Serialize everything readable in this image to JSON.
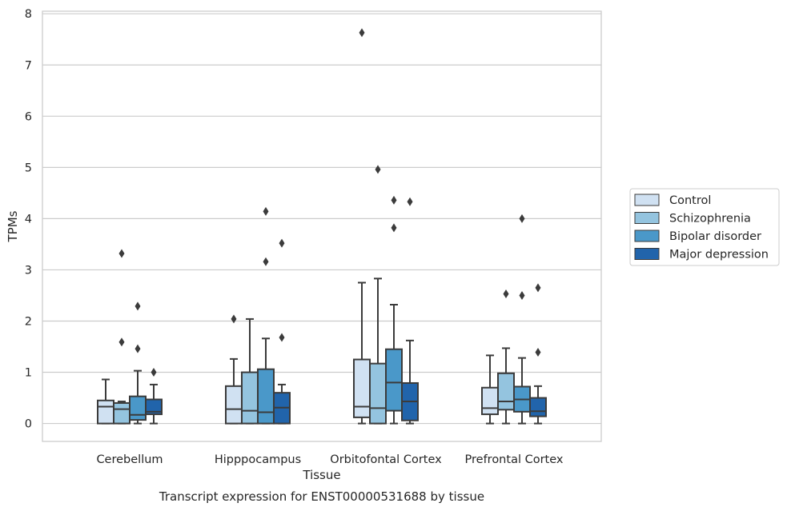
{
  "chart_data": {
    "type": "boxplot",
    "caption": "Transcript expression for ENST00000531688 by tissue",
    "xlabel": "Tissue",
    "ylabel": "TPMs",
    "ylim": [
      -0.35,
      8.05
    ],
    "yticks": [
      0,
      1,
      2,
      3,
      4,
      5,
      6,
      7,
      8
    ],
    "grid": "horizontal",
    "legend_position": "right",
    "categories": [
      "Cerebellum",
      "Hipppocampus",
      "Orbitofontal Cortex",
      "Prefrontal Cortex"
    ],
    "series": [
      {
        "name": "Control",
        "color": "#d0e1f2",
        "boxes": [
          {
            "whislo": 0.0,
            "q1": 0.0,
            "median": 0.33,
            "q3": 0.45,
            "whishi": 0.86,
            "fliers": []
          },
          {
            "whislo": 0.0,
            "q1": 0.0,
            "median": 0.28,
            "q3": 0.73,
            "whishi": 1.26,
            "fliers": [
              2.04
            ]
          },
          {
            "whislo": 0.0,
            "q1": 0.12,
            "median": 0.33,
            "q3": 1.25,
            "whishi": 2.75,
            "fliers": [
              7.63
            ]
          },
          {
            "whislo": 0.0,
            "q1": 0.18,
            "median": 0.3,
            "q3": 0.7,
            "whishi": 1.33,
            "fliers": []
          }
        ]
      },
      {
        "name": "Schizophrenia",
        "color": "#94c4df",
        "boxes": [
          {
            "whislo": 0.0,
            "q1": 0.0,
            "median": 0.28,
            "q3": 0.4,
            "whishi": 0.43,
            "fliers": [
              3.32,
              1.59
            ]
          },
          {
            "whislo": 0.0,
            "q1": 0.0,
            "median": 0.25,
            "q3": 1.0,
            "whishi": 2.04,
            "fliers": []
          },
          {
            "whislo": 0.0,
            "q1": 0.0,
            "median": 0.3,
            "q3": 1.17,
            "whishi": 2.83,
            "fliers": [
              4.96
            ]
          },
          {
            "whislo": 0.0,
            "q1": 0.27,
            "median": 0.43,
            "q3": 0.98,
            "whishi": 1.47,
            "fliers": [
              2.53
            ]
          }
        ]
      },
      {
        "name": "Bipolar disorder",
        "color": "#4a98c9",
        "boxes": [
          {
            "whislo": 0.0,
            "q1": 0.07,
            "median": 0.17,
            "q3": 0.53,
            "whishi": 1.03,
            "fliers": [
              2.29,
              1.46
            ]
          },
          {
            "whislo": 0.0,
            "q1": 0.0,
            "median": 0.22,
            "q3": 1.06,
            "whishi": 1.66,
            "fliers": [
              4.14,
              3.16
            ]
          },
          {
            "whislo": 0.0,
            "q1": 0.25,
            "median": 0.8,
            "q3": 1.45,
            "whishi": 2.32,
            "fliers": [
              4.36,
              3.82
            ]
          },
          {
            "whislo": 0.0,
            "q1": 0.23,
            "median": 0.47,
            "q3": 0.72,
            "whishi": 1.28,
            "fliers": [
              4.0,
              2.5
            ]
          }
        ]
      },
      {
        "name": "Major depression",
        "color": "#2164ab",
        "boxes": [
          {
            "whislo": 0.0,
            "q1": 0.18,
            "median": 0.23,
            "q3": 0.47,
            "whishi": 0.76,
            "fliers": [
              1.0
            ]
          },
          {
            "whislo": 0.0,
            "q1": 0.0,
            "median": 0.31,
            "q3": 0.6,
            "whishi": 0.76,
            "fliers": [
              3.52,
              1.68
            ]
          },
          {
            "whislo": 0.0,
            "q1": 0.06,
            "median": 0.43,
            "q3": 0.79,
            "whishi": 1.62,
            "fliers": [
              4.33
            ]
          },
          {
            "whislo": 0.0,
            "q1": 0.14,
            "median": 0.24,
            "q3": 0.5,
            "whishi": 0.73,
            "fliers": [
              2.65,
              1.39
            ]
          }
        ]
      }
    ]
  },
  "colors": {
    "grid": "#cccccc",
    "frame": "#cccccc",
    "line": "#3b3b3b",
    "text": "#262626"
  }
}
